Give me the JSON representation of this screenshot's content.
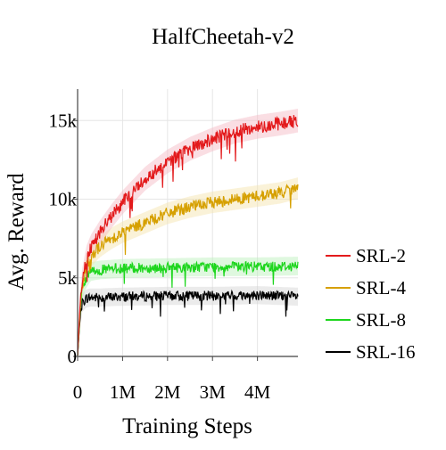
{
  "chart_data": {
    "type": "line",
    "title": "HalfCheetah-v2",
    "xlabel": "Training Steps",
    "ylabel": "Avg. Reward",
    "xlim": [
      0,
      4900000
    ],
    "ylim": [
      0,
      17000
    ],
    "x_ticks": [
      {
        "value": 0,
        "label": "0"
      },
      {
        "value": 1000000,
        "label": "1M"
      },
      {
        "value": 2000000,
        "label": "2M"
      },
      {
        "value": 3000000,
        "label": "3M"
      },
      {
        "value": 4000000,
        "label": "4M"
      }
    ],
    "y_ticks": [
      {
        "value": 0,
        "label": "0"
      },
      {
        "value": 5000,
        "label": "5k"
      },
      {
        "value": 10000,
        "label": "10k"
      },
      {
        "value": 15000,
        "label": "15k"
      }
    ],
    "grid": true,
    "legend_position": "right",
    "series": [
      {
        "name": "SRL-2",
        "color": "#e31a1c",
        "band_color": "#f4b6c0",
        "x": [
          0,
          50000,
          100000,
          200000,
          300000,
          500000,
          750000,
          1000000,
          1500000,
          2000000,
          2500000,
          3000000,
          3500000,
          4000000,
          4500000,
          4900000
        ],
        "y": [
          0,
          3000,
          4800,
          6300,
          7000,
          7900,
          8900,
          9800,
          11300,
          12400,
          13200,
          13800,
          14300,
          14600,
          14800,
          15000
        ],
        "noise": 420
      },
      {
        "name": "SRL-4",
        "color": "#d6a000",
        "band_color": "#f3e3a8",
        "x": [
          0,
          50000,
          100000,
          200000,
          300000,
          500000,
          750000,
          1000000,
          1500000,
          2000000,
          2500000,
          3000000,
          3500000,
          4000000,
          4500000,
          4900000
        ],
        "y": [
          0,
          2800,
          4500,
          5800,
          6400,
          7000,
          7500,
          7900,
          8500,
          9100,
          9500,
          9800,
          10000,
          10200,
          10400,
          10700
        ],
        "noise": 380
      },
      {
        "name": "SRL-8",
        "color": "#1ed61e",
        "band_color": "#b9f0b9",
        "x": [
          0,
          50000,
          100000,
          200000,
          300000,
          500000,
          1000000,
          2000000,
          3000000,
          4000000,
          4900000
        ],
        "y": [
          0,
          2600,
          4200,
          5000,
          5400,
          5500,
          5600,
          5650,
          5700,
          5700,
          5750
        ],
        "noise": 330
      },
      {
        "name": "SRL-16",
        "color": "#000000",
        "band_color": "#d3d3d3",
        "x": [
          0,
          50000,
          100000,
          200000,
          300000,
          500000,
          1000000,
          2000000,
          3000000,
          4000000,
          4900000
        ],
        "y": [
          0,
          2300,
          3400,
          3700,
          3750,
          3750,
          3800,
          3850,
          3850,
          3900,
          3800
        ],
        "noise": 320
      }
    ]
  }
}
